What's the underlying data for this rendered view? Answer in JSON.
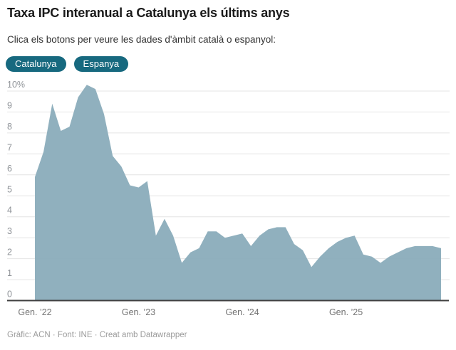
{
  "header": {
    "title": "Taxa IPC interanual a Catalunya els últims anys",
    "subtitle": "Clica els botons per veure les dades d'àmbit català o espanyol:"
  },
  "buttons": [
    {
      "label": "Catalunya",
      "active": true
    },
    {
      "label": "Espanya",
      "active": false
    }
  ],
  "footer": {
    "credits": "Gràfic: ACN · Font: INE · Creat amb Datawrapper"
  },
  "colors": {
    "accent_button": "#17697f",
    "area_fill": "#8aacba",
    "baseline": "#404040",
    "gridline": "#e4e4e4",
    "axis_label": "#8f9398",
    "tick_label": "#737373",
    "footer_text": "#9b9b9b",
    "title_text": "#1a1a1a",
    "subtitle_text": "#333333"
  },
  "chart_data": {
    "type": "area",
    "title": "Taxa IPC interanual a Catalunya els últims anys",
    "series_name": "Catalunya",
    "unit": "%",
    "x": [
      "2022-01",
      "2022-02",
      "2022-03",
      "2022-04",
      "2022-05",
      "2022-06",
      "2022-07",
      "2022-08",
      "2022-09",
      "2022-10",
      "2022-11",
      "2022-12",
      "2023-01",
      "2023-02",
      "2023-03",
      "2023-04",
      "2023-05",
      "2023-06",
      "2023-07",
      "2023-08",
      "2023-09",
      "2023-10",
      "2023-11",
      "2023-12",
      "2024-01",
      "2024-02",
      "2024-03",
      "2024-04",
      "2024-05",
      "2024-06",
      "2024-07",
      "2024-08",
      "2024-09",
      "2024-10",
      "2024-11",
      "2024-12",
      "2025-01",
      "2025-02",
      "2025-03",
      "2025-04",
      "2025-05",
      "2025-06",
      "2025-07",
      "2025-08",
      "2025-09",
      "2025-10",
      "2025-11",
      "2025-12"
    ],
    "values": [
      5.9,
      7.1,
      9.4,
      8.1,
      8.3,
      9.7,
      10.3,
      10.1,
      8.9,
      6.9,
      6.4,
      5.5,
      5.4,
      5.7,
      3.1,
      3.9,
      3.1,
      1.8,
      2.3,
      2.5,
      3.3,
      3.3,
      3.0,
      3.1,
      3.2,
      2.6,
      3.1,
      3.4,
      3.5,
      3.5,
      2.7,
      2.4,
      1.6,
      2.1,
      2.5,
      2.8,
      3.0,
      3.1,
      2.2,
      2.1,
      1.8,
      2.1,
      2.3,
      2.5,
      2.6,
      2.6,
      2.6,
      2.5
    ],
    "ylim": [
      0,
      10
    ],
    "y_ticks": [
      0,
      1,
      2,
      3,
      4,
      5,
      6,
      7,
      8,
      9,
      10
    ],
    "y_top_tick_label": "10%",
    "x_ticks": [
      {
        "index": 0,
        "label": "Gen. ’22"
      },
      {
        "index": 12,
        "label": "Gen. ’23"
      },
      {
        "index": 24,
        "label": "Gen. ’24"
      },
      {
        "index": 36,
        "label": "Gen. ’25"
      }
    ],
    "grid": true,
    "legend": false
  }
}
